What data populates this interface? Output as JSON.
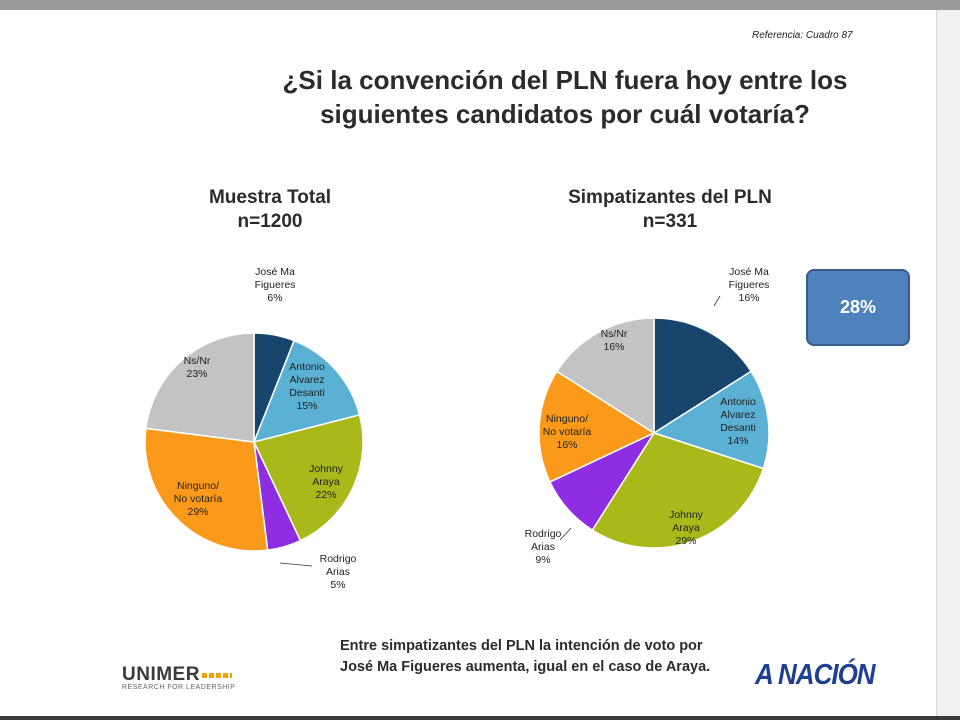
{
  "reference": "Referencia: Cuadro 87",
  "title_line1": "¿Si la convención del PLN fuera hoy entre los",
  "title_line2": "siguientes candidatos por cuál votaría?",
  "chart_data": [
    {
      "type": "pie",
      "title": "Muestra Total",
      "subtitle": "n=1200",
      "slices": [
        {
          "label_lines": [
            "José Ma",
            "Figueres"
          ],
          "value": 6,
          "value_label": "6%",
          "color": "#17456b"
        },
        {
          "label_lines": [
            "Antonio",
            "Alvarez",
            "Desanti"
          ],
          "value": 15,
          "value_label": "15%",
          "color": "#5bb1d3"
        },
        {
          "label_lines": [
            "Johnny",
            "Araya"
          ],
          "value": 22,
          "value_label": "22%",
          "color": "#a9b91a"
        },
        {
          "label_lines": [
            "Rodrigo",
            "Arias"
          ],
          "value": 5,
          "value_label": "5%",
          "color": "#8e2de2"
        },
        {
          "label_lines": [
            "Ninguno/",
            "No votaría"
          ],
          "value": 29,
          "value_label": "29%",
          "color": "#fb9a1a"
        },
        {
          "label_lines": [
            "Ns/Nr"
          ],
          "value": 23,
          "value_label": "23%",
          "color": "#c3c3c3"
        }
      ]
    },
    {
      "type": "pie",
      "title": "Simpatizantes del PLN",
      "subtitle": "n=331",
      "slices": [
        {
          "label_lines": [
            "José Ma",
            "Figueres"
          ],
          "value": 16,
          "value_label": "16%",
          "color": "#17456b"
        },
        {
          "label_lines": [
            "Antonio",
            "Alvarez",
            "Desanti"
          ],
          "value": 14,
          "value_label": "14%",
          "color": "#5bb1d3"
        },
        {
          "label_lines": [
            "Johnny",
            "Araya"
          ],
          "value": 29,
          "value_label": "29%",
          "color": "#a9b91a"
        },
        {
          "label_lines": [
            "Rodrigo",
            "Arias"
          ],
          "value": 9,
          "value_label": "9%",
          "color": "#8e2de2"
        },
        {
          "label_lines": [
            "Ninguno/",
            "No votaría"
          ],
          "value": 16,
          "value_label": "16%",
          "color": "#fb9a1a"
        },
        {
          "label_lines": [
            "Ns/Nr"
          ],
          "value": 16,
          "value_label": "16%",
          "color": "#c3c3c3"
        }
      ]
    }
  ],
  "note_line1": "Entre simpatizantes del PLN la intención de voto por",
  "note_line2": "José Ma Figueres aumenta, igual en el caso de Araya.",
  "callout": "28%",
  "logos": {
    "unimer": "UNIMER",
    "unimer_tagline": "RESEARCH FOR LEADERSHIP",
    "nacion": "A NACIÓN"
  }
}
